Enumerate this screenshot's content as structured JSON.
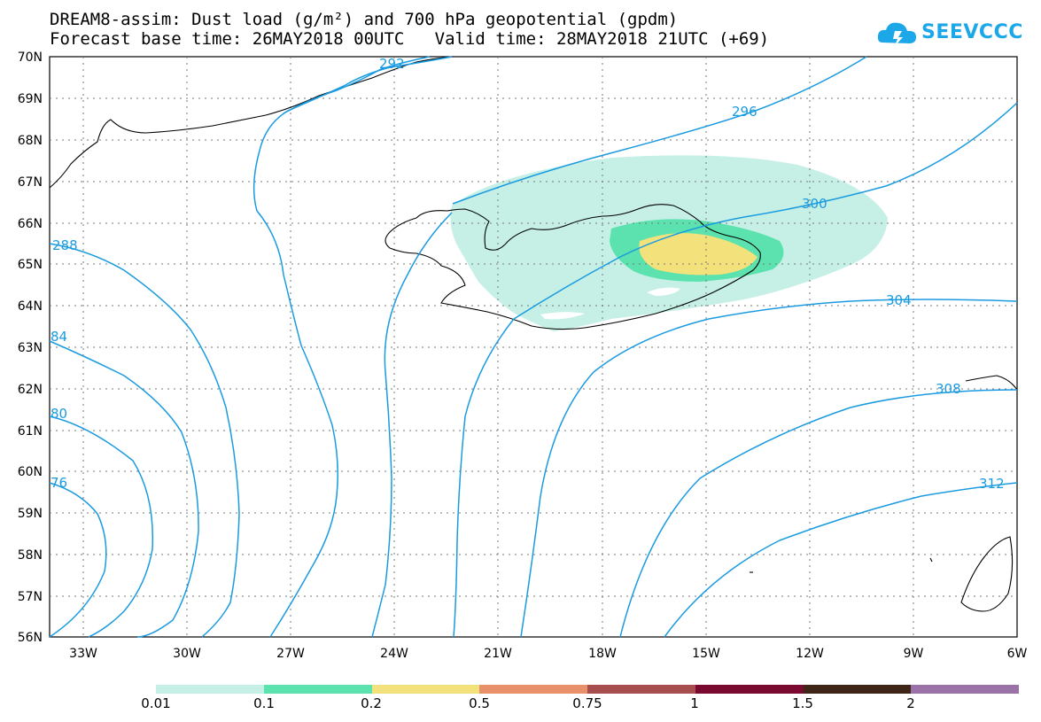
{
  "header": {
    "line1": "DREAM8-assim: Dust load (g/m²) and 700 hPa geopotential (gpdm)",
    "line2": "Forecast base time: 26MAY2018 00UTC   Valid time: 28MAY2018 21UTC (+69)"
  },
  "logo": {
    "text": "SEEVCCC",
    "color": "#1ca7e8"
  },
  "axes": {
    "lat_labels": [
      "70N",
      "69N",
      "68N",
      "67N",
      "66N",
      "65N",
      "64N",
      "63N",
      "62N",
      "61N",
      "60N",
      "59N",
      "58N",
      "57N",
      "56N"
    ],
    "lon_labels": [
      "33W",
      "30W",
      "27W",
      "24W",
      "21W",
      "18W",
      "15W",
      "12W",
      "9W",
      "6W"
    ],
    "lat_range": [
      56,
      70
    ],
    "lon_range": [
      -34.5,
      -6
    ]
  },
  "contours": {
    "color": "#1a9be0",
    "labels": [
      "292",
      "296",
      "300",
      "304",
      "308",
      "312",
      "288",
      "84",
      "80",
      "76"
    ]
  },
  "colorbar": {
    "levels": [
      "0.01",
      "0.1",
      "0.2",
      "0.5",
      "0.75",
      "1",
      "1.5",
      "2"
    ],
    "colors": [
      "#c6f0e6",
      "#5be2ae",
      "#f3e27c",
      "#e8906a",
      "#a84e4e",
      "#7a0a30",
      "#3f2418",
      "#9a72a8"
    ]
  }
}
